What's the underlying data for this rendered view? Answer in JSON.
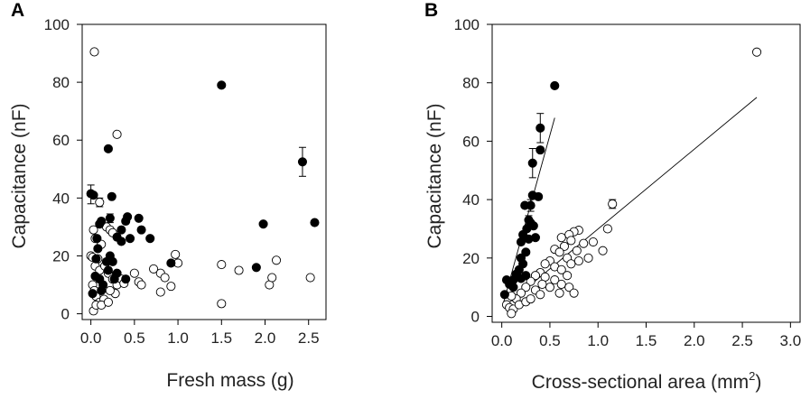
{
  "chart_data": [
    {
      "panel": "A",
      "type": "scatter",
      "title": "",
      "xlabel": "Fresh mass (g)",
      "ylabel": "Capacitance (nF)",
      "xlim": [
        -0.1,
        2.7
      ],
      "ylim": [
        -2,
        100
      ],
      "xticks": [
        "0.0",
        "0.5",
        "1.0",
        "1.5",
        "2.0",
        "2.5"
      ],
      "yticks": [
        "0",
        "20",
        "40",
        "60",
        "80",
        "100"
      ],
      "series": [
        {
          "marker": "filled-circle",
          "color": "#000000",
          "points": [
            [
              0.0,
              41.5
            ],
            [
              0.03,
              41
            ],
            [
              0.08,
              22.5
            ],
            [
              0.1,
              31
            ],
            [
              0.12,
              32
            ],
            [
              0.05,
              13
            ],
            [
              0.02,
              7
            ],
            [
              0.06,
              19
            ],
            [
              0.1,
              12
            ],
            [
              0.12,
              8
            ],
            [
              0.14,
              10
            ],
            [
              0.07,
              26
            ],
            [
              0.2,
              57
            ],
            [
              0.22,
              33
            ],
            [
              0.24,
              40.5
            ],
            [
              0.22,
              20
            ],
            [
              0.25,
              18
            ],
            [
              0.2,
              15
            ],
            [
              0.27,
              12
            ],
            [
              0.3,
              14
            ],
            [
              0.3,
              26.5
            ],
            [
              0.35,
              25
            ],
            [
              0.35,
              29
            ],
            [
              0.4,
              32
            ],
            [
              0.42,
              33.5
            ],
            [
              0.45,
              26
            ],
            [
              0.4,
              12
            ],
            [
              0.55,
              33
            ],
            [
              0.58,
              29
            ],
            [
              0.68,
              26
            ],
            [
              0.18,
              18
            ],
            [
              0.92,
              17.5
            ],
            [
              1.5,
              79
            ],
            [
              1.9,
              16
            ],
            [
              1.98,
              31
            ],
            [
              2.43,
              52.5
            ],
            [
              2.57,
              31.5
            ]
          ]
        },
        {
          "marker": "open-circle",
          "color": "#000000",
          "points": [
            [
              0.04,
              90.5
            ],
            [
              0.3,
              62
            ],
            [
              0.1,
              38.5
            ],
            [
              0.18,
              30
            ],
            [
              0.22,
              29
            ],
            [
              0.25,
              28
            ],
            [
              0.03,
              29
            ],
            [
              0.05,
              26
            ],
            [
              0.12,
              24
            ],
            [
              0.0,
              20
            ],
            [
              0.02,
              19.5
            ],
            [
              0.08,
              19
            ],
            [
              0.05,
              16.5
            ],
            [
              0.1,
              15
            ],
            [
              0.2,
              14
            ],
            [
              0.25,
              12
            ],
            [
              0.3,
              10
            ],
            [
              0.02,
              10
            ],
            [
              0.04,
              8
            ],
            [
              0.06,
              6
            ],
            [
              0.1,
              4
            ],
            [
              0.15,
              5
            ],
            [
              0.03,
              1
            ],
            [
              0.06,
              3
            ],
            [
              0.12,
              3
            ],
            [
              0.2,
              4
            ],
            [
              0.28,
              7
            ],
            [
              0.35,
              12
            ],
            [
              0.38,
              10.5
            ],
            [
              0.5,
              14
            ],
            [
              0.55,
              11
            ],
            [
              0.58,
              10
            ],
            [
              0.72,
              15.5
            ],
            [
              0.8,
              14
            ],
            [
              0.85,
              12.5
            ],
            [
              0.8,
              7.5
            ],
            [
              0.92,
              9.5
            ],
            [
              0.97,
              20.5
            ],
            [
              1.0,
              17.5
            ],
            [
              1.5,
              17
            ],
            [
              1.5,
              3.5
            ],
            [
              1.7,
              15
            ],
            [
              2.05,
              10
            ],
            [
              2.08,
              12.5
            ],
            [
              2.13,
              18.5
            ],
            [
              2.52,
              12.5
            ],
            [
              0.16,
              16.5
            ],
            [
              0.22,
              8
            ]
          ]
        }
      ],
      "error_bars": [
        {
          "x": 0.0,
          "y": 41.5,
          "low": 38,
          "high": 44.5
        },
        {
          "x": 0.22,
          "y": 33,
          "low": 31.5,
          "high": 34.5
        },
        {
          "x": 0.1,
          "y": 38.5,
          "low": 37,
          "high": 40
        },
        {
          "x": 2.43,
          "y": 52.5,
          "low": 47.5,
          "high": 57.5
        }
      ],
      "grid": false
    },
    {
      "panel": "B",
      "type": "scatter",
      "title": "",
      "xlabel": "Cross-sectional area (mm",
      "xlabel_sup": "2",
      "xlabel_suffix": ")",
      "ylabel": "Capacitance (nF)",
      "xlim": [
        -0.1,
        3.1
      ],
      "ylim": [
        -2,
        100
      ],
      "xticks": [
        "0.0",
        "0.5",
        "1.0",
        "1.5",
        "2.0",
        "2.5",
        "3.0"
      ],
      "yticks": [
        "0",
        "20",
        "40",
        "60",
        "80",
        "100"
      ],
      "series": [
        {
          "marker": "filled-circle",
          "color": "#000000",
          "points": [
            [
              0.55,
              79
            ],
            [
              0.4,
              64.5
            ],
            [
              0.4,
              57
            ],
            [
              0.32,
              52.5
            ],
            [
              0.38,
              41
            ],
            [
              0.32,
              41.5
            ],
            [
              0.3,
              38
            ],
            [
              0.24,
              38
            ],
            [
              0.28,
              33
            ],
            [
              0.3,
              32
            ],
            [
              0.33,
              31
            ],
            [
              0.26,
              30
            ],
            [
              0.22,
              28
            ],
            [
              0.28,
              26.5
            ],
            [
              0.35,
              27
            ],
            [
              0.2,
              25.5
            ],
            [
              0.25,
              22
            ],
            [
              0.2,
              20
            ],
            [
              0.18,
              16
            ],
            [
              0.22,
              18
            ],
            [
              0.15,
              14.5
            ],
            [
              0.12,
              12.5
            ],
            [
              0.2,
              13
            ],
            [
              0.25,
              14
            ],
            [
              0.05,
              12.5
            ],
            [
              0.03,
              7.5
            ],
            [
              0.12,
              10
            ],
            [
              0.08,
              11
            ]
          ]
        },
        {
          "marker": "open-circle",
          "color": "#000000",
          "points": [
            [
              2.65,
              90.5
            ],
            [
              1.15,
              38.5
            ],
            [
              1.1,
              30
            ],
            [
              0.8,
              29.5
            ],
            [
              0.75,
              29
            ],
            [
              0.7,
              28
            ],
            [
              0.62,
              27
            ],
            [
              0.72,
              26
            ],
            [
              0.65,
              24
            ],
            [
              0.55,
              23
            ],
            [
              0.6,
              22
            ],
            [
              0.85,
              25
            ],
            [
              0.95,
              25.5
            ],
            [
              0.78,
              22.5
            ],
            [
              0.68,
              20
            ],
            [
              0.5,
              19
            ],
            [
              0.45,
              18
            ],
            [
              0.55,
              17
            ],
            [
              0.62,
              16
            ],
            [
              0.72,
              18
            ],
            [
              0.8,
              19
            ],
            [
              0.4,
              15
            ],
            [
              0.35,
              14
            ],
            [
              0.45,
              13.5
            ],
            [
              0.55,
              12.5
            ],
            [
              0.62,
              11
            ],
            [
              0.7,
              10
            ],
            [
              0.75,
              8
            ],
            [
              0.3,
              12
            ],
            [
              0.25,
              10
            ],
            [
              0.35,
              9
            ],
            [
              0.4,
              7.5
            ],
            [
              0.2,
              8
            ],
            [
              0.15,
              6
            ],
            [
              0.1,
              7
            ],
            [
              0.05,
              4
            ],
            [
              0.08,
              3
            ],
            [
              0.12,
              2.5
            ],
            [
              0.1,
              1
            ],
            [
              0.18,
              4
            ],
            [
              0.25,
              5
            ],
            [
              0.3,
              6
            ],
            [
              0.6,
              8
            ],
            [
              0.5,
              10
            ],
            [
              0.42,
              11
            ],
            [
              0.68,
              14
            ],
            [
              1.05,
              22.5
            ],
            [
              0.9,
              20
            ]
          ]
        }
      ],
      "error_bars": [
        {
          "x": 0.4,
          "y": 64.5,
          "low": 59.5,
          "high": 69.5
        },
        {
          "x": 0.32,
          "y": 52.5,
          "low": 47.5,
          "high": 57.5
        },
        {
          "x": 0.3,
          "y": 38,
          "low": 36,
          "high": 40
        },
        {
          "x": 0.28,
          "y": 33,
          "low": 31.5,
          "high": 34.5
        },
        {
          "x": 1.15,
          "y": 38.5,
          "low": 37,
          "high": 40
        }
      ],
      "fit_lines": [
        {
          "x": [
            0.02,
            0.55
          ],
          "y": [
            5,
            68
          ]
        },
        {
          "x": [
            0.05,
            2.65
          ],
          "y": [
            4,
            75
          ]
        }
      ],
      "grid": false
    }
  ]
}
